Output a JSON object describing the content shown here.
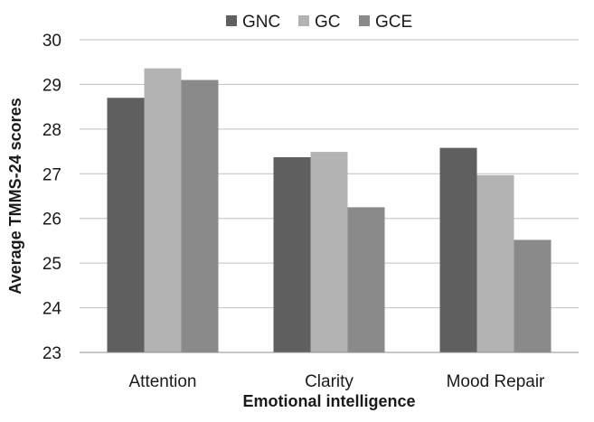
{
  "chart_data": {
    "type": "bar",
    "categories": [
      "Attention",
      "Clarity",
      "Mood Repair"
    ],
    "series": [
      {
        "name": "GNC",
        "values": [
          28.7,
          27.37,
          27.58
        ],
        "color": "#5f5f5f"
      },
      {
        "name": "GC",
        "values": [
          29.36,
          27.49,
          26.97
        ],
        "color": "#b3b3b3"
      },
      {
        "name": "GCE",
        "values": [
          29.1,
          26.25,
          25.52
        ],
        "color": "#8a8a8a"
      }
    ],
    "title": "",
    "xlabel": "Emotional intelligence",
    "ylabel": "Average TMMS-24 scores",
    "ylim": [
      23,
      30
    ],
    "yticks": [
      23,
      24,
      25,
      26,
      27,
      28,
      29,
      30
    ],
    "grid": true,
    "legend_position": "top"
  }
}
